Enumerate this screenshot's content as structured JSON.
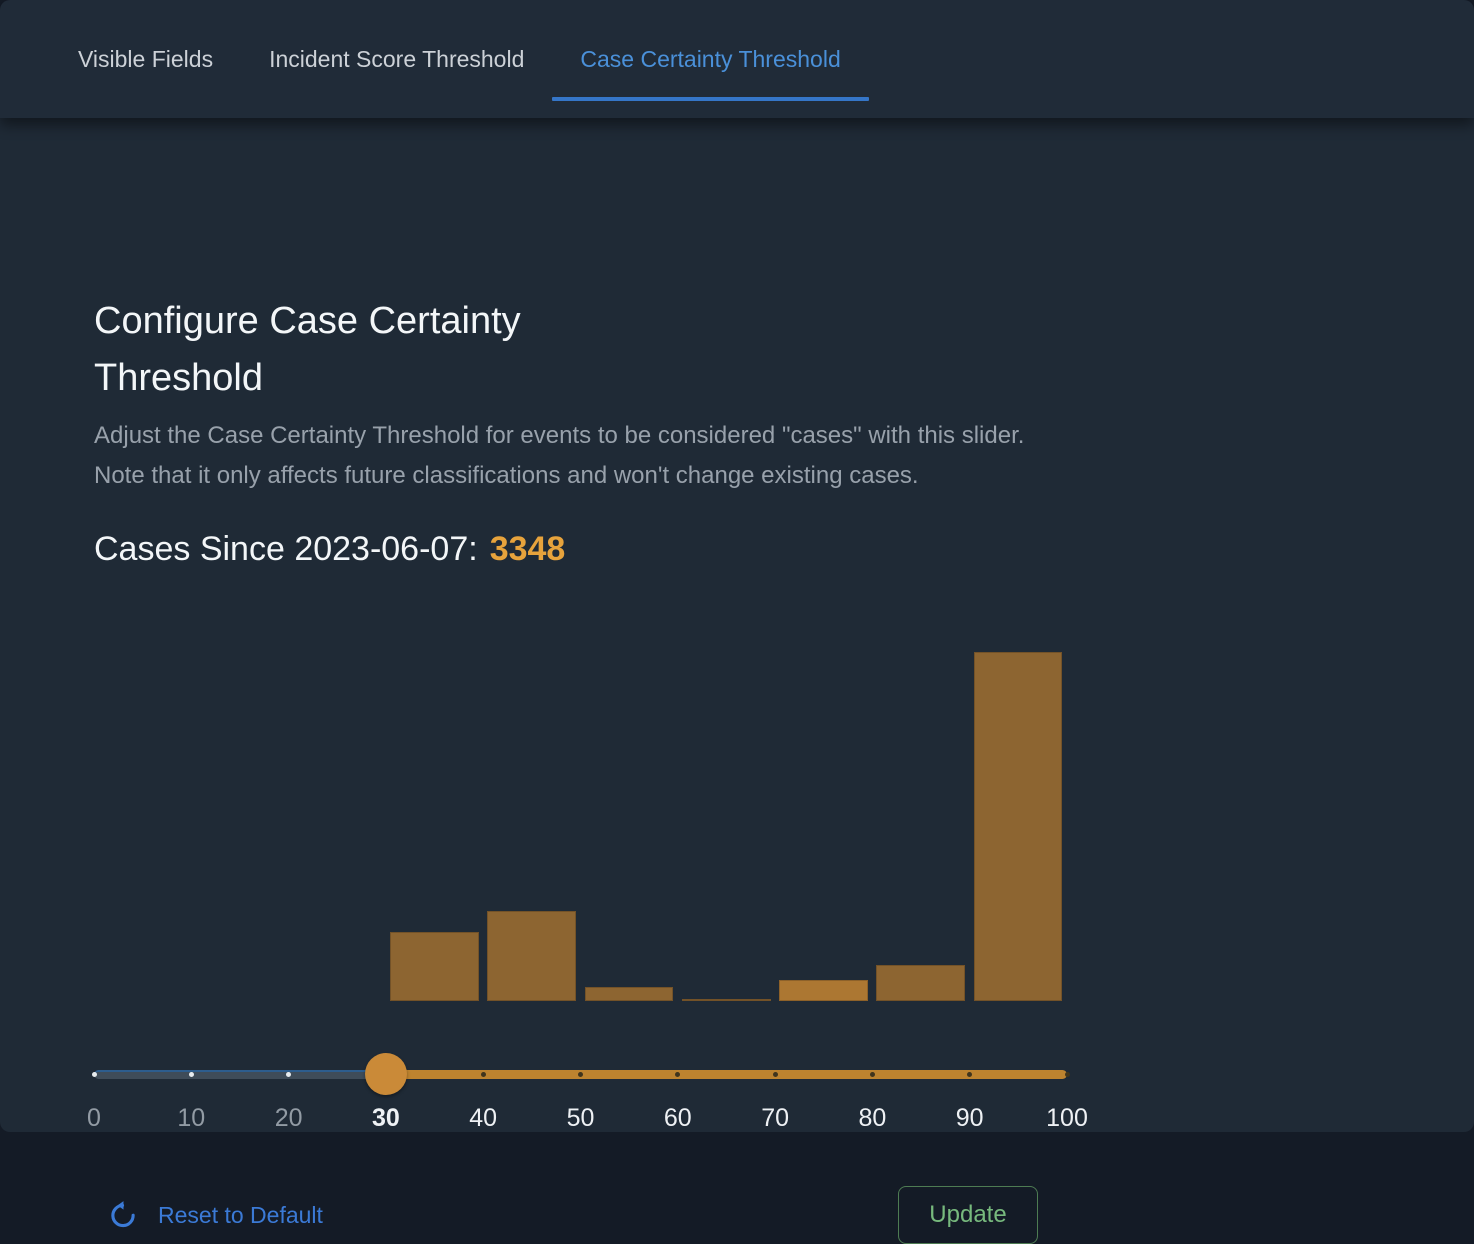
{
  "tabs": [
    {
      "label": "Visible Fields",
      "active": false
    },
    {
      "label": "Incident Score Threshold",
      "active": false
    },
    {
      "label": "Case Certainty Threshold",
      "active": true
    }
  ],
  "panel": {
    "title": "Configure Case Certainty Threshold",
    "description": [
      "Adjust the Case Certainty Threshold for events to be considered \"cases\" with this slider.",
      "Note that it only affects future classifications and won't change existing cases."
    ],
    "cases_label": "Cases Since 2023-06-07:",
    "cases_count": "3348"
  },
  "chart_data": {
    "type": "bar",
    "title": "",
    "xlabel": "",
    "ylabel": "",
    "xlim": [
      0,
      100
    ],
    "categories": [
      "30-40",
      "40-50",
      "50-60",
      "60-70",
      "70-80",
      "80-90",
      "90-100"
    ],
    "bin_starts": [
      30,
      40,
      50,
      60,
      70,
      80,
      90
    ],
    "values": [
      397,
      518,
      81,
      12,
      121,
      210,
      2009
    ],
    "values_note": "approximate counts estimated from bar heights; total = 3348",
    "bar_colors": [
      "#8d6531",
      "#8d6531",
      "#8d6531",
      "#8d6531",
      "#ac7732",
      "#8d6531",
      "#8d6531"
    ],
    "grid": false,
    "legend": false
  },
  "slider": {
    "min": 0,
    "max": 100,
    "value": 30,
    "ticks": [
      0,
      10,
      20,
      30,
      40,
      50,
      60,
      70,
      80,
      90,
      100
    ],
    "filled_track_color": "#bd832f",
    "handle_color": "#ca8a38",
    "rail_color": "#3f4c59"
  },
  "footer": {
    "reset_label": "Reset to Default",
    "update_label": "Update",
    "reset_color": "#3b7ad6",
    "update_text_color": "#77b97d",
    "update_border_color": "#4e7c53"
  },
  "colors": {
    "backdrop": "#141b26",
    "panel_bg": "#1f2a36",
    "header_bg": "#202b38",
    "active_tab": "#4a90d9",
    "tab_underline": "#3576c8",
    "accent_orange": "#e7a33c"
  }
}
